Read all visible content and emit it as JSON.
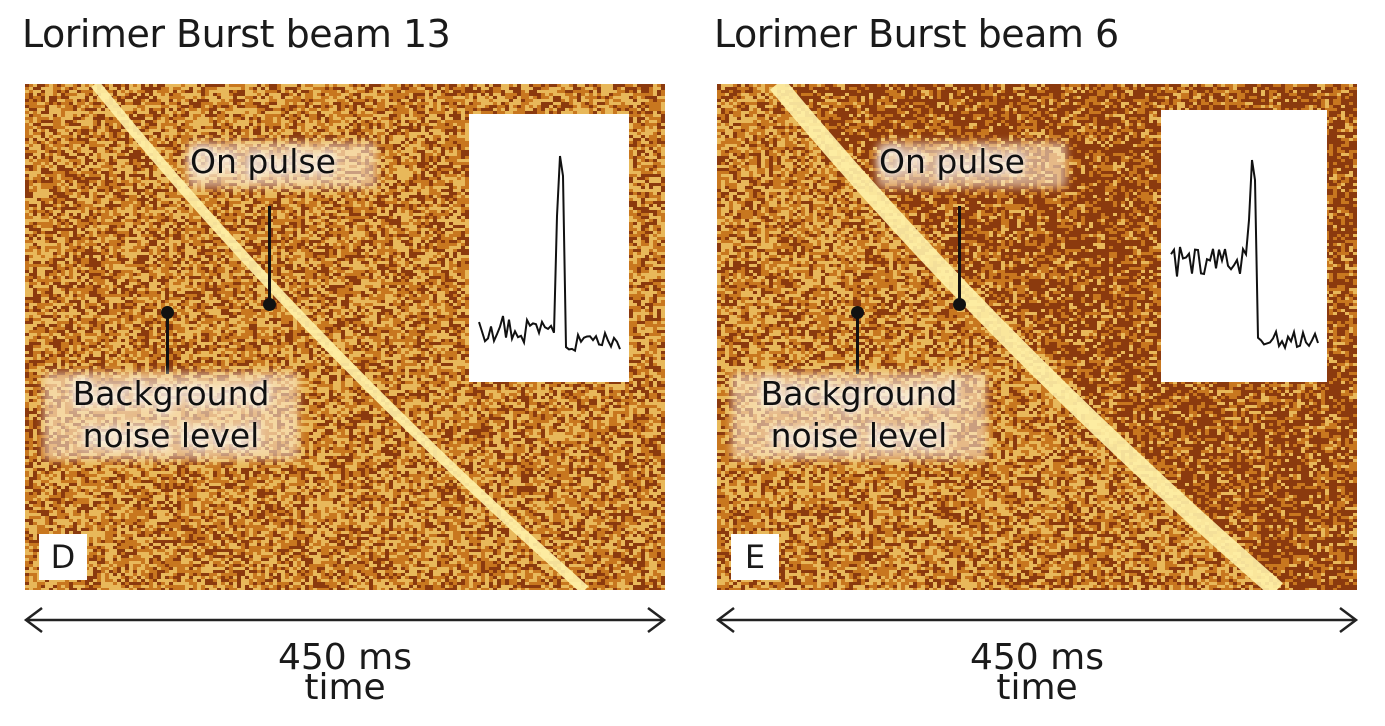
{
  "panels": [
    {
      "id": "D",
      "title": "Lorimer Burst beam 13",
      "letter": "D",
      "on_pulse_label": "On pulse",
      "background_label_line1": "Background",
      "background_label_line2": "noise level",
      "axis_value": "450 ms",
      "axis_label": "time"
    },
    {
      "id": "E",
      "title": "Lorimer Burst beam 6",
      "letter": "E",
      "on_pulse_label": "On pulse",
      "background_label_line1": "Background",
      "background_label_line2": "noise level",
      "axis_value": "450 ms",
      "axis_label": "time"
    }
  ],
  "colors": {
    "noise_dark": "#8b3a0e",
    "noise_mid": "#c8771f",
    "noise_light": "#e8b85a",
    "pulse": "#fff2a8",
    "text": "#111111"
  }
}
